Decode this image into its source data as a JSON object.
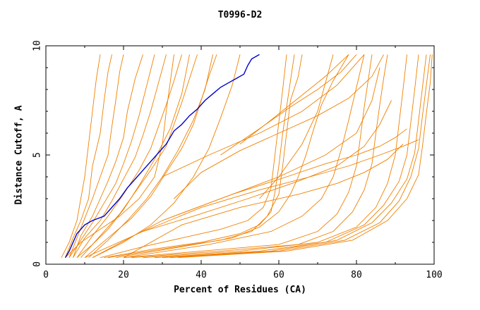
{
  "chart_data": {
    "type": "line",
    "title": "T0996-D2",
    "xlabel": "Percent of Residues (CA)",
    "ylabel": "Distance Cutoff, A",
    "xlim": [
      0,
      100
    ],
    "ylim": [
      0,
      10
    ],
    "xticks": [
      0,
      20,
      40,
      60,
      80,
      100
    ],
    "yticks": [
      0,
      5,
      10
    ],
    "grid": false,
    "legend": "none",
    "colors": {
      "models": "#f08000",
      "highlight": "#0000c8",
      "axes": "#000000"
    },
    "highlight_series": {
      "x": [
        5,
        6,
        7,
        8,
        10,
        12,
        15,
        17,
        19,
        21,
        23,
        25,
        27,
        29,
        31,
        33,
        35,
        37,
        39,
        41,
        43,
        45,
        47,
        49,
        51,
        52,
        53,
        55
      ],
      "y": [
        0.3,
        0.6,
        1.0,
        1.4,
        1.8,
        2.0,
        2.2,
        2.6,
        3.0,
        3.5,
        3.9,
        4.3,
        4.7,
        5.1,
        5.5,
        6.1,
        6.4,
        6.8,
        7.1,
        7.5,
        7.8,
        8.1,
        8.3,
        8.5,
        8.7,
        9.1,
        9.4,
        9.6
      ]
    },
    "model_series": [
      {
        "x": [
          4,
          6,
          8,
          9,
          10,
          11,
          12,
          13,
          14
        ],
        "y": [
          0.3,
          1.0,
          2.0,
          3.0,
          4.0,
          5.5,
          7.0,
          8.5,
          9.6
        ]
      },
      {
        "x": [
          5,
          7,
          9,
          11,
          12,
          14,
          15,
          16,
          17
        ],
        "y": [
          0.3,
          1.2,
          2.0,
          3.0,
          4.5,
          6.0,
          7.5,
          8.8,
          9.6
        ]
      },
      {
        "x": [
          6,
          8,
          10,
          12,
          14,
          16,
          17,
          18,
          19,
          20
        ],
        "y": [
          0.3,
          1.2,
          2.1,
          3.0,
          4.0,
          5.0,
          6.3,
          7.5,
          8.8,
          9.6
        ]
      },
      {
        "x": [
          7,
          9,
          12,
          14,
          16,
          18,
          20,
          21,
          23,
          25
        ],
        "y": [
          0.3,
          1.3,
          2.2,
          3.0,
          3.8,
          4.7,
          5.8,
          7.0,
          8.5,
          9.6
        ]
      },
      {
        "x": [
          6,
          9,
          12,
          15,
          18,
          20,
          22,
          24,
          26,
          28
        ],
        "y": [
          0.3,
          1.1,
          1.9,
          2.8,
          3.7,
          4.6,
          5.6,
          6.8,
          8.2,
          9.6
        ]
      },
      {
        "x": [
          7,
          10,
          14,
          17,
          20,
          23,
          25,
          27,
          29,
          31
        ],
        "y": [
          0.3,
          1.2,
          2.0,
          2.9,
          3.9,
          4.9,
          5.9,
          7.0,
          8.3,
          9.6
        ]
      },
      {
        "x": [
          8,
          12,
          16,
          20,
          24,
          27,
          29,
          31,
          33,
          35
        ],
        "y": [
          0.3,
          1.3,
          2.2,
          3.2,
          4.3,
          5.3,
          6.3,
          7.3,
          8.4,
          9.6
        ]
      },
      {
        "x": [
          9,
          14,
          19,
          23,
          27,
          31,
          33,
          35,
          37,
          39
        ],
        "y": [
          0.3,
          1.3,
          2.3,
          3.3,
          4.3,
          5.4,
          6.4,
          7.4,
          8.5,
          9.6
        ]
      },
      {
        "x": [
          10,
          16,
          22,
          27,
          31,
          35,
          38,
          40,
          42,
          44
        ],
        "y": [
          0.3,
          1.2,
          2.1,
          3.1,
          4.2,
          5.3,
          6.4,
          7.5,
          8.6,
          9.6
        ]
      },
      {
        "x": [
          12,
          20,
          27,
          33,
          38,
          42,
          45,
          48,
          50
        ],
        "y": [
          0.3,
          1.0,
          1.8,
          2.8,
          4.0,
          5.3,
          6.7,
          8.2,
          9.6
        ]
      },
      {
        "x": [
          14,
          25,
          35,
          45,
          52,
          56,
          58,
          59,
          60,
          61,
          62
        ],
        "y": [
          0.3,
          0.8,
          1.2,
          1.6,
          2.0,
          2.6,
          3.5,
          5.0,
          6.5,
          8.0,
          9.6
        ]
      },
      {
        "x": [
          15,
          28,
          40,
          50,
          55,
          58,
          59,
          60,
          61,
          62,
          63,
          64
        ],
        "y": [
          0.3,
          0.7,
          1.0,
          1.4,
          1.8,
          2.4,
          3.3,
          4.5,
          6.0,
          7.2,
          8.4,
          9.6
        ]
      },
      {
        "x": [
          16,
          30,
          45,
          53,
          57,
          60,
          61,
          62,
          63,
          65,
          66
        ],
        "y": [
          0.3,
          0.7,
          1.1,
          1.5,
          2.2,
          3.2,
          4.5,
          6.0,
          7.5,
          8.6,
          9.6
        ]
      },
      {
        "x": [
          18,
          35,
          48,
          55,
          60,
          63,
          65,
          67,
          69,
          71,
          74,
          78
        ],
        "y": [
          0.3,
          0.8,
          1.2,
          1.7,
          2.4,
          3.2,
          4.0,
          5.0,
          6.2,
          7.3,
          8.4,
          9.6
        ]
      },
      {
        "x": [
          20,
          40,
          60,
          70,
          75,
          78,
          80,
          81,
          82,
          83,
          84
        ],
        "y": [
          0.3,
          0.6,
          0.9,
          1.5,
          2.3,
          3.3,
          4.5,
          5.8,
          7.2,
          8.4,
          9.6
        ]
      },
      {
        "x": [
          22,
          45,
          65,
          74,
          79,
          82,
          84,
          85,
          86,
          87,
          88
        ],
        "y": [
          0.3,
          0.6,
          0.9,
          1.5,
          2.4,
          3.4,
          4.6,
          6.0,
          7.3,
          8.5,
          9.6
        ]
      },
      {
        "x": [
          25,
          50,
          70,
          80,
          85,
          88,
          90,
          91,
          92,
          93
        ],
        "y": [
          0.3,
          0.6,
          1.0,
          1.7,
          2.6,
          3.7,
          5.0,
          6.5,
          8.0,
          9.6
        ]
      },
      {
        "x": [
          28,
          55,
          72,
          82,
          87,
          91,
          93,
          94,
          95,
          96
        ],
        "y": [
          0.3,
          0.6,
          1.0,
          1.8,
          2.7,
          3.8,
          5.0,
          6.5,
          8.0,
          9.6
        ]
      },
      {
        "x": [
          30,
          58,
          75,
          84,
          89,
          93,
          95,
          96,
          97,
          98
        ],
        "y": [
          0.3,
          0.6,
          1.1,
          1.9,
          2.8,
          3.9,
          5.1,
          6.6,
          8.1,
          9.6
        ]
      },
      {
        "x": [
          32,
          60,
          77,
          86,
          91,
          94,
          96,
          97,
          98,
          99
        ],
        "y": [
          0.3,
          0.6,
          1.1,
          1.9,
          2.9,
          4.0,
          5.3,
          6.8,
          8.2,
          9.6
        ]
      },
      {
        "x": [
          34,
          62,
          79,
          88,
          93,
          96,
          97,
          98,
          99,
          99.5
        ],
        "y": [
          0.3,
          0.6,
          1.1,
          2.0,
          3.0,
          4.1,
          5.4,
          6.9,
          8.3,
          9.6
        ]
      },
      {
        "x": [
          20,
          42,
          58,
          66,
          71,
          74,
          76,
          78,
          80,
          82
        ],
        "y": [
          0.3,
          0.9,
          1.5,
          2.2,
          3.0,
          4.0,
          5.2,
          6.6,
          8.1,
          9.6
        ]
      },
      {
        "x": [
          10,
          25,
          40,
          55,
          68,
          78,
          86,
          92,
          96
        ],
        "y": [
          0.3,
          1.5,
          2.6,
          3.4,
          4.0,
          4.5,
          5.0,
          5.4,
          5.7
        ]
      },
      {
        "x": [
          12,
          30,
          48,
          62,
          72,
          80,
          86,
          90,
          93
        ],
        "y": [
          0.3,
          2.0,
          3.2,
          4.0,
          4.6,
          5.0,
          5.4,
          5.8,
          6.2
        ]
      },
      {
        "x": [
          20,
          35,
          50,
          65,
          75,
          82,
          88,
          92
        ],
        "y": [
          0.3,
          1.8,
          2.6,
          3.2,
          3.7,
          4.2,
          4.8,
          5.5
        ]
      },
      {
        "x": [
          25,
          38,
          52,
          65,
          75,
          82,
          86,
          89
        ],
        "y": [
          1.5,
          2.2,
          3.0,
          3.8,
          4.5,
          5.4,
          6.4,
          7.5
        ]
      },
      {
        "x": [
          30,
          45,
          60,
          72,
          80,
          84,
          86
        ],
        "y": [
          2.0,
          3.0,
          4.0,
          5.0,
          6.0,
          7.5,
          9.0
        ]
      },
      {
        "x": [
          33,
          40,
          50,
          60,
          70,
          78,
          84,
          87
        ],
        "y": [
          3.0,
          4.2,
          5.2,
          6.0,
          6.8,
          7.6,
          8.6,
          9.6
        ]
      },
      {
        "x": [
          30,
          42,
          55,
          66,
          75,
          82
        ],
        "y": [
          4.0,
          5.0,
          6.0,
          7.0,
          8.2,
          9.6
        ]
      },
      {
        "x": [
          45,
          55,
          63,
          70,
          76,
          80
        ],
        "y": [
          5.0,
          6.2,
          7.2,
          8.0,
          8.8,
          9.6
        ]
      },
      {
        "x": [
          50,
          58,
          65,
          72,
          78
        ],
        "y": [
          5.5,
          6.6,
          7.6,
          8.6,
          9.6
        ]
      },
      {
        "x": [
          55,
          60,
          66,
          70,
          74
        ],
        "y": [
          3.0,
          4.0,
          5.5,
          7.0,
          9.6
        ]
      },
      {
        "x": [
          5,
          9,
          14,
          19,
          24,
          28,
          30,
          31,
          33
        ],
        "y": [
          0.3,
          1.0,
          1.6,
          2.2,
          3.0,
          4.0,
          5.5,
          7.0,
          9.6
        ]
      },
      {
        "x": [
          8,
          12,
          16,
          20,
          24,
          28,
          32,
          35,
          37
        ],
        "y": [
          0.3,
          0.9,
          1.6,
          2.5,
          3.6,
          4.8,
          6.2,
          7.8,
          9.6
        ]
      },
      {
        "x": [
          11,
          16,
          21,
          26,
          30,
          34,
          38,
          41,
          43
        ],
        "y": [
          0.3,
          1.1,
          2.0,
          3.0,
          4.0,
          5.2,
          6.6,
          8.0,
          9.6
        ]
      }
    ]
  }
}
